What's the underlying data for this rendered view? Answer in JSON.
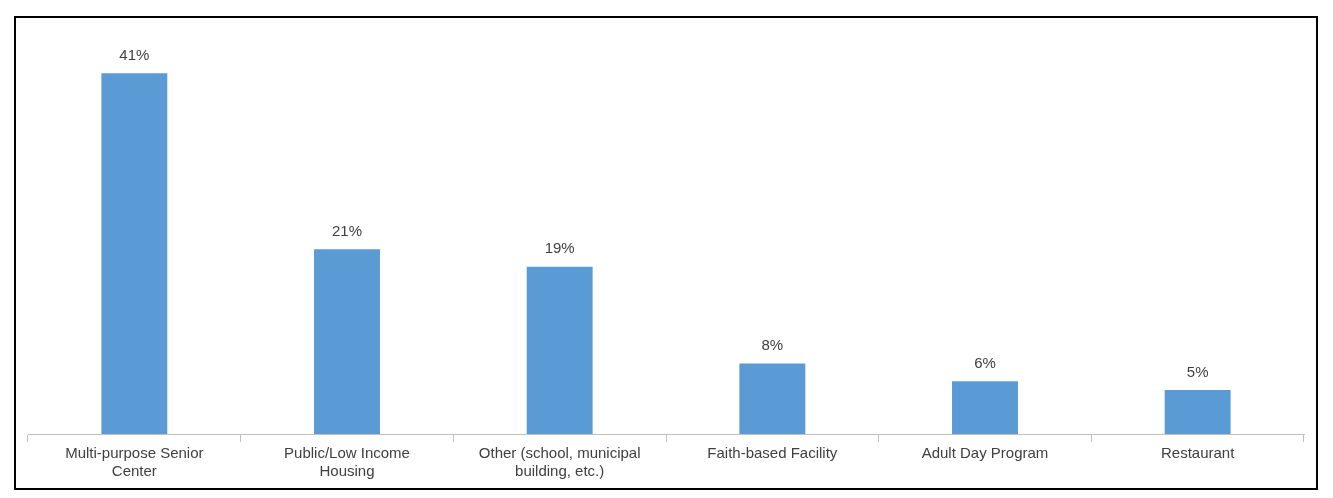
{
  "chart_data": {
    "type": "bar",
    "categories": [
      "Multi-purpose Senior Center",
      "Public/Low Income Housing",
      "Other (school, municipal building, etc.)",
      "Faith-based Facility",
      "Adult Day Program",
      "Restaurant"
    ],
    "values": [
      41,
      21,
      19,
      8,
      6,
      5
    ],
    "color": "#5b9bd5",
    "value_labels": [
      "41%",
      "21%",
      "19%",
      "8%",
      "6%",
      "5%"
    ],
    "grid": false,
    "legend": false
  }
}
